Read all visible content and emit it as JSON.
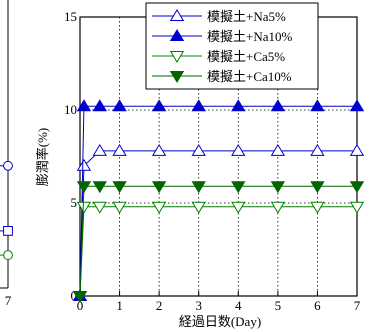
{
  "chart_data": {
    "type": "line",
    "xlabel": "経過日数(Day)",
    "ylabel": "膨潤率(%)",
    "xlim": [
      0,
      7
    ],
    "ylim": [
      0,
      15
    ],
    "x_ticks": [
      0,
      1,
      2,
      3,
      4,
      5,
      6,
      7
    ],
    "y_ticks": [
      0,
      5,
      10,
      15
    ],
    "grid": "dotted",
    "legend_position": "top-right",
    "x": [
      0,
      0.1,
      0.5,
      1,
      2,
      3,
      4,
      5,
      6,
      7
    ],
    "series": [
      {
        "name": "模擬土+Na5%",
        "marker": "triangle-up-open",
        "color": "#0000cc",
        "values": [
          0,
          7.0,
          7.8,
          7.8,
          7.8,
          7.8,
          7.8,
          7.8,
          7.8,
          7.8
        ]
      },
      {
        "name": "模擬土+Na10%",
        "marker": "triangle-up-filled",
        "color": "#0000cc",
        "values": [
          0,
          10.2,
          10.2,
          10.2,
          10.2,
          10.2,
          10.2,
          10.2,
          10.2,
          10.2
        ]
      },
      {
        "name": "模擬土+Ca5%",
        "marker": "triangle-down-open",
        "color": "#008000",
        "values": [
          0,
          4.8,
          4.8,
          4.8,
          4.8,
          4.8,
          4.8,
          4.8,
          4.8,
          4.8
        ]
      },
      {
        "name": "模擬土+Ca10%",
        "marker": "triangle-down-filled",
        "color": "#006400",
        "values": [
          0,
          5.9,
          5.9,
          5.9,
          5.9,
          5.9,
          5.9,
          5.9,
          5.9,
          5.9
        ]
      }
    ],
    "left_fragment": {
      "x_tick_label": "7",
      "markers": [
        {
          "shape": "circle-open",
          "color": "#0000cc",
          "y_value": 7.0
        },
        {
          "shape": "square-open",
          "color": "#0000cc",
          "y_value": 3.5
        },
        {
          "shape": "circle-open",
          "color": "#008000",
          "y_value": 2.2
        }
      ]
    }
  }
}
